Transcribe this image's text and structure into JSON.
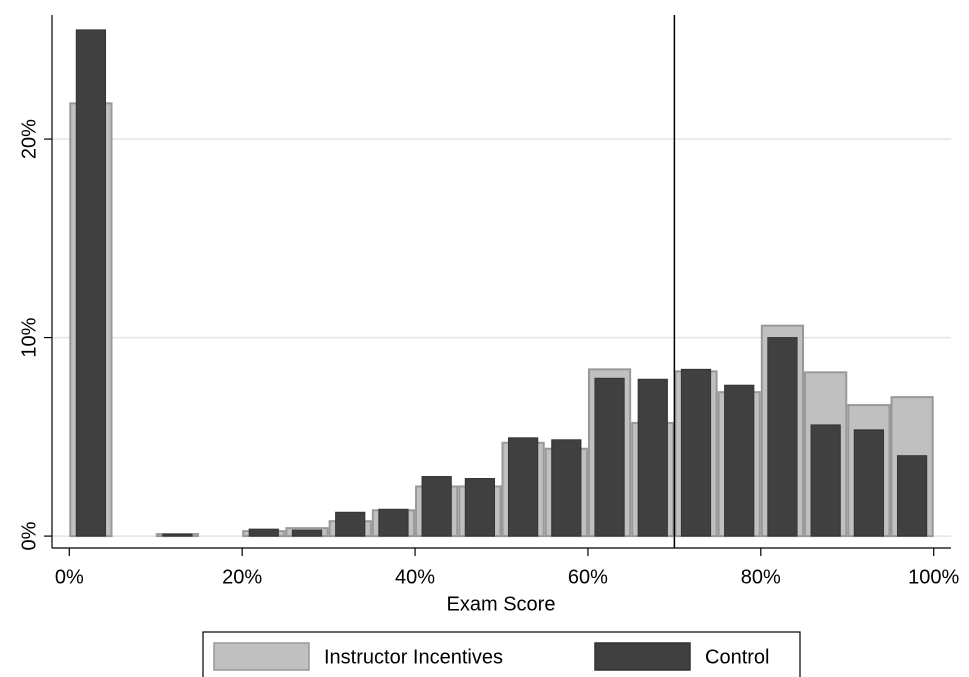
{
  "chart_data": {
    "type": "histogram",
    "x_label": "Exam Score",
    "bins": [
      0,
      5,
      10,
      15,
      20,
      25,
      30,
      35,
      40,
      45,
      50,
      55,
      60,
      65,
      70,
      75,
      80,
      85,
      90,
      95,
      100
    ],
    "series": [
      {
        "name": "Instructor Incentives",
        "color": "#c0c0c0",
        "edge": "#999999",
        "values": [
          21.8,
          0,
          0.1,
          0,
          0.25,
          0.4,
          0.75,
          1.3,
          2.5,
          2.5,
          4.7,
          4.4,
          8.4,
          5.7,
          8.3,
          7.25,
          10.6,
          8.25,
          6.6,
          7.0
        ]
      },
      {
        "name": "Control",
        "color": "#404040",
        "edge": "#333333",
        "values": [
          25.5,
          0,
          0.1,
          0,
          0.35,
          0.3,
          1.2,
          1.35,
          3.0,
          2.9,
          4.95,
          4.85,
          7.95,
          7.9,
          8.4,
          7.6,
          10.0,
          5.6,
          5.35,
          4.05
        ]
      }
    ],
    "xlim": [
      -2,
      102
    ],
    "ylim": [
      -0.6,
      26.25
    ],
    "xticks": [
      {
        "value": 0,
        "label": "0%"
      },
      {
        "value": 20,
        "label": "20%"
      },
      {
        "value": 40,
        "label": "40%"
      },
      {
        "value": 60,
        "label": "60%"
      },
      {
        "value": 80,
        "label": "80%"
      },
      {
        "value": 100,
        "label": "100%"
      }
    ],
    "yticks": [
      {
        "value": 0,
        "label": "0%"
      },
      {
        "value": 10,
        "label": "10%"
      },
      {
        "value": 20,
        "label": "20%"
      }
    ],
    "vline": 70,
    "grid": true,
    "legend": "bottom"
  }
}
